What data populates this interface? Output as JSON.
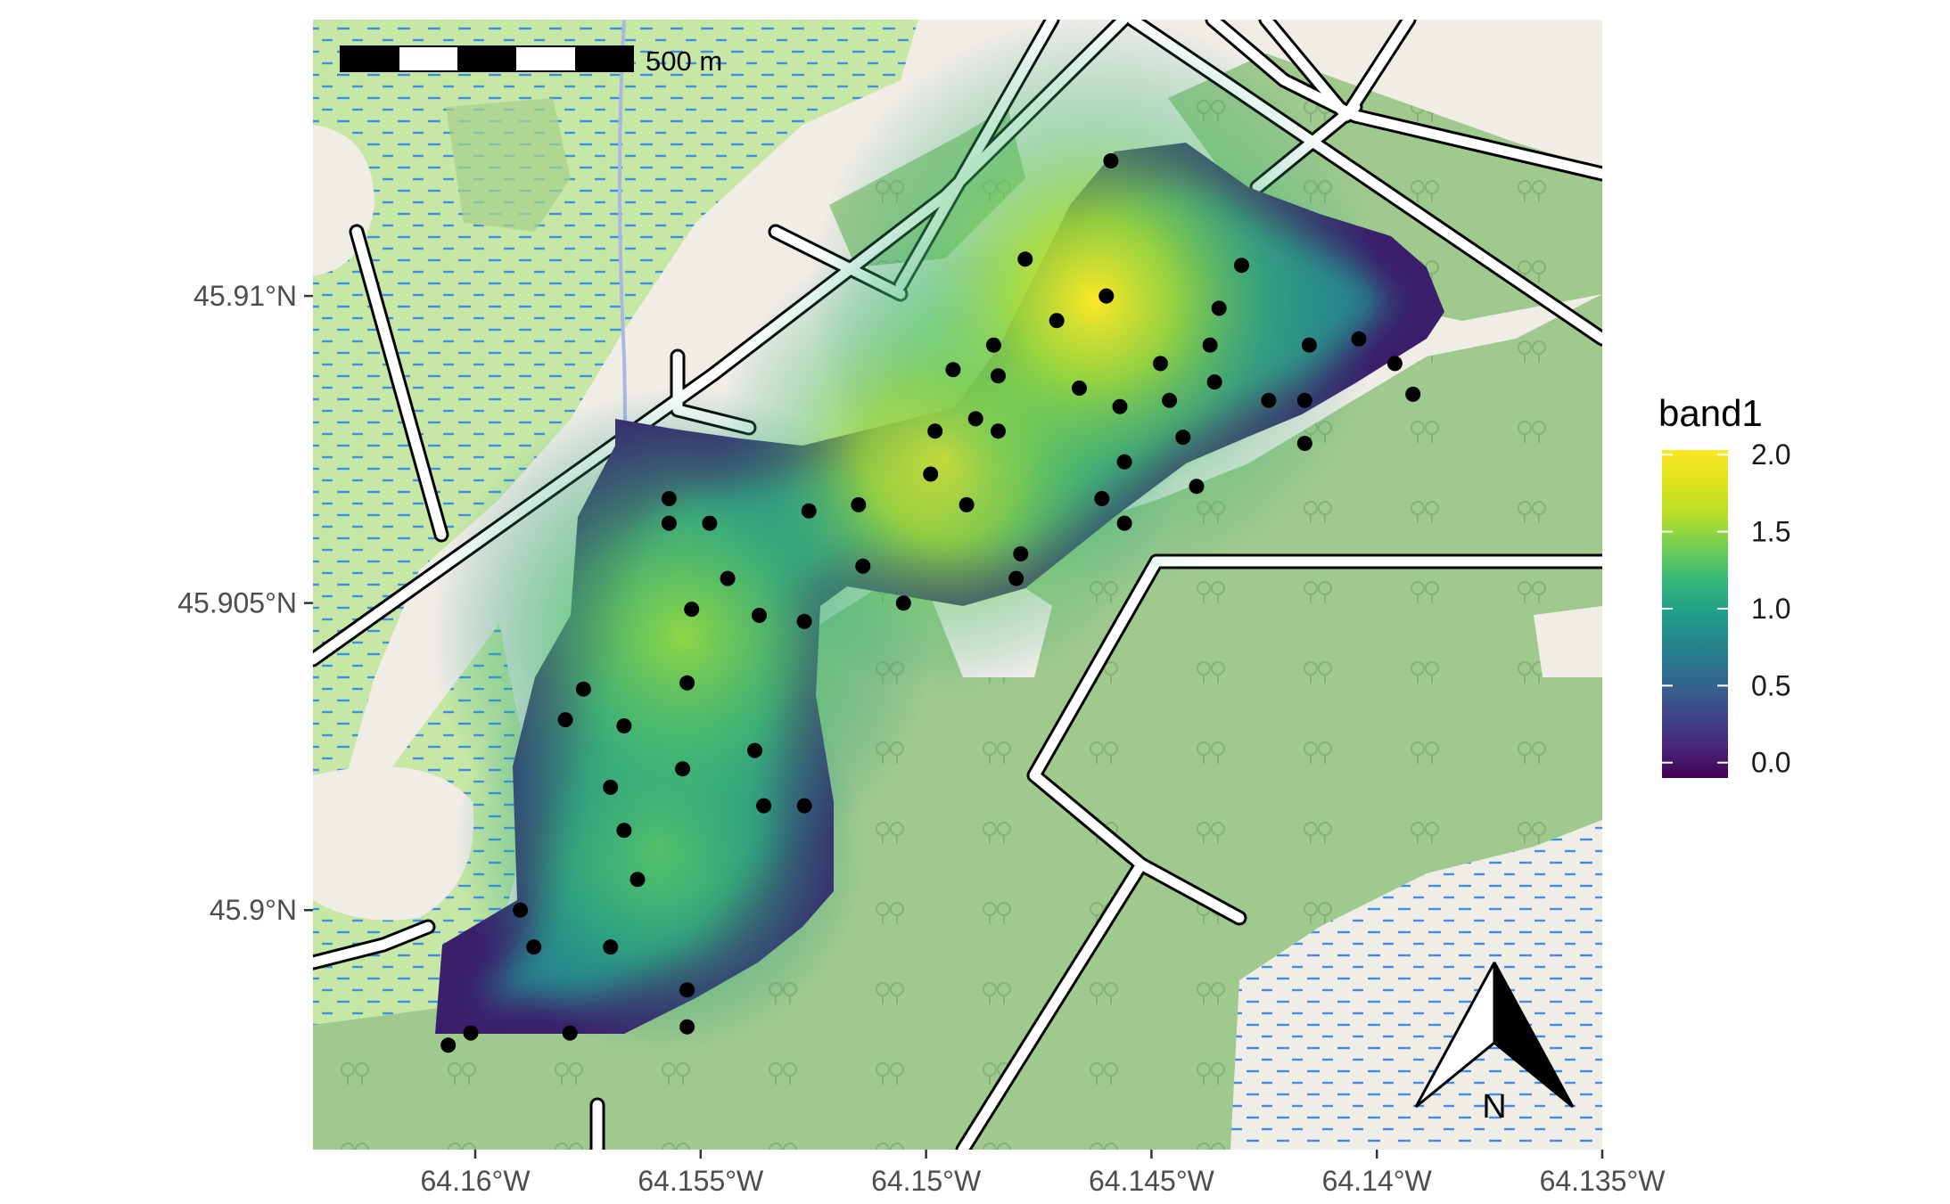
{
  "map": {
    "extent": {
      "lon": [
        -64.1636,
        -64.135
      ],
      "lat": [
        45.8961,
        45.9145
      ]
    },
    "x_ticks": [
      {
        "value": -64.16,
        "label": "64.16°W"
      },
      {
        "value": -64.155,
        "label": "64.155°W"
      },
      {
        "value": -64.15,
        "label": "64.15°W"
      },
      {
        "value": -64.145,
        "label": "64.145°W"
      },
      {
        "value": -64.14,
        "label": "64.14°W"
      },
      {
        "value": -64.135,
        "label": "64.135°W"
      }
    ],
    "y_ticks": [
      {
        "value": 45.91,
        "label": "45.91°N"
      },
      {
        "value": 45.905,
        "label": "45.905°N"
      },
      {
        "value": 45.9,
        "label": "45.9°N"
      }
    ],
    "colors": {
      "marsh": "#c6e8a4",
      "water_dash": "#3f8fe8",
      "forest": "#9fc98d",
      "land": "#f0ece6",
      "road": "#ffffff",
      "road_casing": "#000000",
      "points": "#000000"
    }
  },
  "scalebar": {
    "label": "500 m",
    "segments": 5
  },
  "north_arrow": {
    "label": "N"
  },
  "legend": {
    "title": "band1",
    "palette": "viridis",
    "range": [
      -0.1,
      2.03
    ],
    "ticks": [
      {
        "value": 2.0,
        "label": "2.0"
      },
      {
        "value": 1.5,
        "label": "1.5"
      },
      {
        "value": 1.0,
        "label": "1.0"
      },
      {
        "value": 0.5,
        "label": "0.5"
      },
      {
        "value": 0.0,
        "label": "0.0"
      }
    ]
  },
  "chart_data": {
    "type": "heatmap",
    "variable": "band1",
    "colorscale": "viridis",
    "value_range": [
      -0.1,
      2.03
    ],
    "hotspots": [
      {
        "lon": -64.1465,
        "lat": 45.9087,
        "value": 2.0
      },
      {
        "lon": -64.1495,
        "lat": 45.9068,
        "value": 1.95
      },
      {
        "lon": -64.1555,
        "lat": 45.9033,
        "value": 1.55
      },
      {
        "lon": -64.1562,
        "lat": 45.9008,
        "value": 1.35
      }
    ],
    "points": [
      {
        "lon": -64.1459,
        "lat": 45.9122
      },
      {
        "lon": -64.1478,
        "lat": 45.9106
      },
      {
        "lon": -64.146,
        "lat": 45.91
      },
      {
        "lon": -64.1435,
        "lat": 45.9098
      },
      {
        "lon": -64.143,
        "lat": 45.9105
      },
      {
        "lon": -64.1471,
        "lat": 45.9096
      },
      {
        "lon": -64.1485,
        "lat": 45.9092
      },
      {
        "lon": -64.1448,
        "lat": 45.9089
      },
      {
        "lon": -64.1437,
        "lat": 45.9092
      },
      {
        "lon": -64.1494,
        "lat": 45.9088
      },
      {
        "lon": -64.1484,
        "lat": 45.9087
      },
      {
        "lon": -64.1436,
        "lat": 45.9086
      },
      {
        "lon": -64.1415,
        "lat": 45.9092
      },
      {
        "lon": -64.1404,
        "lat": 45.9093
      },
      {
        "lon": -64.1396,
        "lat": 45.9089
      },
      {
        "lon": -64.1392,
        "lat": 45.9084
      },
      {
        "lon": -64.1466,
        "lat": 45.9085
      },
      {
        "lon": -64.1457,
        "lat": 45.9082
      },
      {
        "lon": -64.1446,
        "lat": 45.9083
      },
      {
        "lon": -64.1424,
        "lat": 45.9083
      },
      {
        "lon": -64.1416,
        "lat": 45.9083
      },
      {
        "lon": -64.1489,
        "lat": 45.908
      },
      {
        "lon": -64.1498,
        "lat": 45.9078
      },
      {
        "lon": -64.1484,
        "lat": 45.9078
      },
      {
        "lon": -64.1443,
        "lat": 45.9077
      },
      {
        "lon": -64.1416,
        "lat": 45.9076
      },
      {
        "lon": -64.1456,
        "lat": 45.9073
      },
      {
        "lon": -64.1499,
        "lat": 45.9071
      },
      {
        "lon": -64.144,
        "lat": 45.9069
      },
      {
        "lon": -64.1557,
        "lat": 45.9067
      },
      {
        "lon": -64.1515,
        "lat": 45.9066
      },
      {
        "lon": -64.1526,
        "lat": 45.9065
      },
      {
        "lon": -64.1491,
        "lat": 45.9066
      },
      {
        "lon": -64.1461,
        "lat": 45.9067
      },
      {
        "lon": -64.1557,
        "lat": 45.9063
      },
      {
        "lon": -64.1548,
        "lat": 45.9063
      },
      {
        "lon": -64.1456,
        "lat": 45.9063
      },
      {
        "lon": -64.1479,
        "lat": 45.9058
      },
      {
        "lon": -64.1514,
        "lat": 45.9056
      },
      {
        "lon": -64.1544,
        "lat": 45.9054
      },
      {
        "lon": -64.148,
        "lat": 45.9054
      },
      {
        "lon": -64.1505,
        "lat": 45.905
      },
      {
        "lon": -64.1552,
        "lat": 45.9049
      },
      {
        "lon": -64.1537,
        "lat": 45.9048
      },
      {
        "lon": -64.1527,
        "lat": 45.9047
      },
      {
        "lon": -64.1553,
        "lat": 45.9037
      },
      {
        "lon": -64.1576,
        "lat": 45.9036
      },
      {
        "lon": -64.158,
        "lat": 45.9031
      },
      {
        "lon": -64.1567,
        "lat": 45.903
      },
      {
        "lon": -64.1538,
        "lat": 45.9026
      },
      {
        "lon": -64.1554,
        "lat": 45.9023
      },
      {
        "lon": -64.157,
        "lat": 45.902
      },
      {
        "lon": -64.1536,
        "lat": 45.9017
      },
      {
        "lon": -64.1527,
        "lat": 45.9017
      },
      {
        "lon": -64.1567,
        "lat": 45.9013
      },
      {
        "lon": -64.1564,
        "lat": 45.9005
      },
      {
        "lon": -64.159,
        "lat": 45.9
      },
      {
        "lon": -64.1587,
        "lat": 45.8994
      },
      {
        "lon": -64.157,
        "lat": 45.8994
      },
      {
        "lon": -64.1553,
        "lat": 45.8987
      },
      {
        "lon": -64.1553,
        "lat": 45.8981
      },
      {
        "lon": -64.1579,
        "lat": 45.898
      },
      {
        "lon": -64.1601,
        "lat": 45.898
      },
      {
        "lon": -64.1606,
        "lat": 45.8978
      }
    ]
  }
}
